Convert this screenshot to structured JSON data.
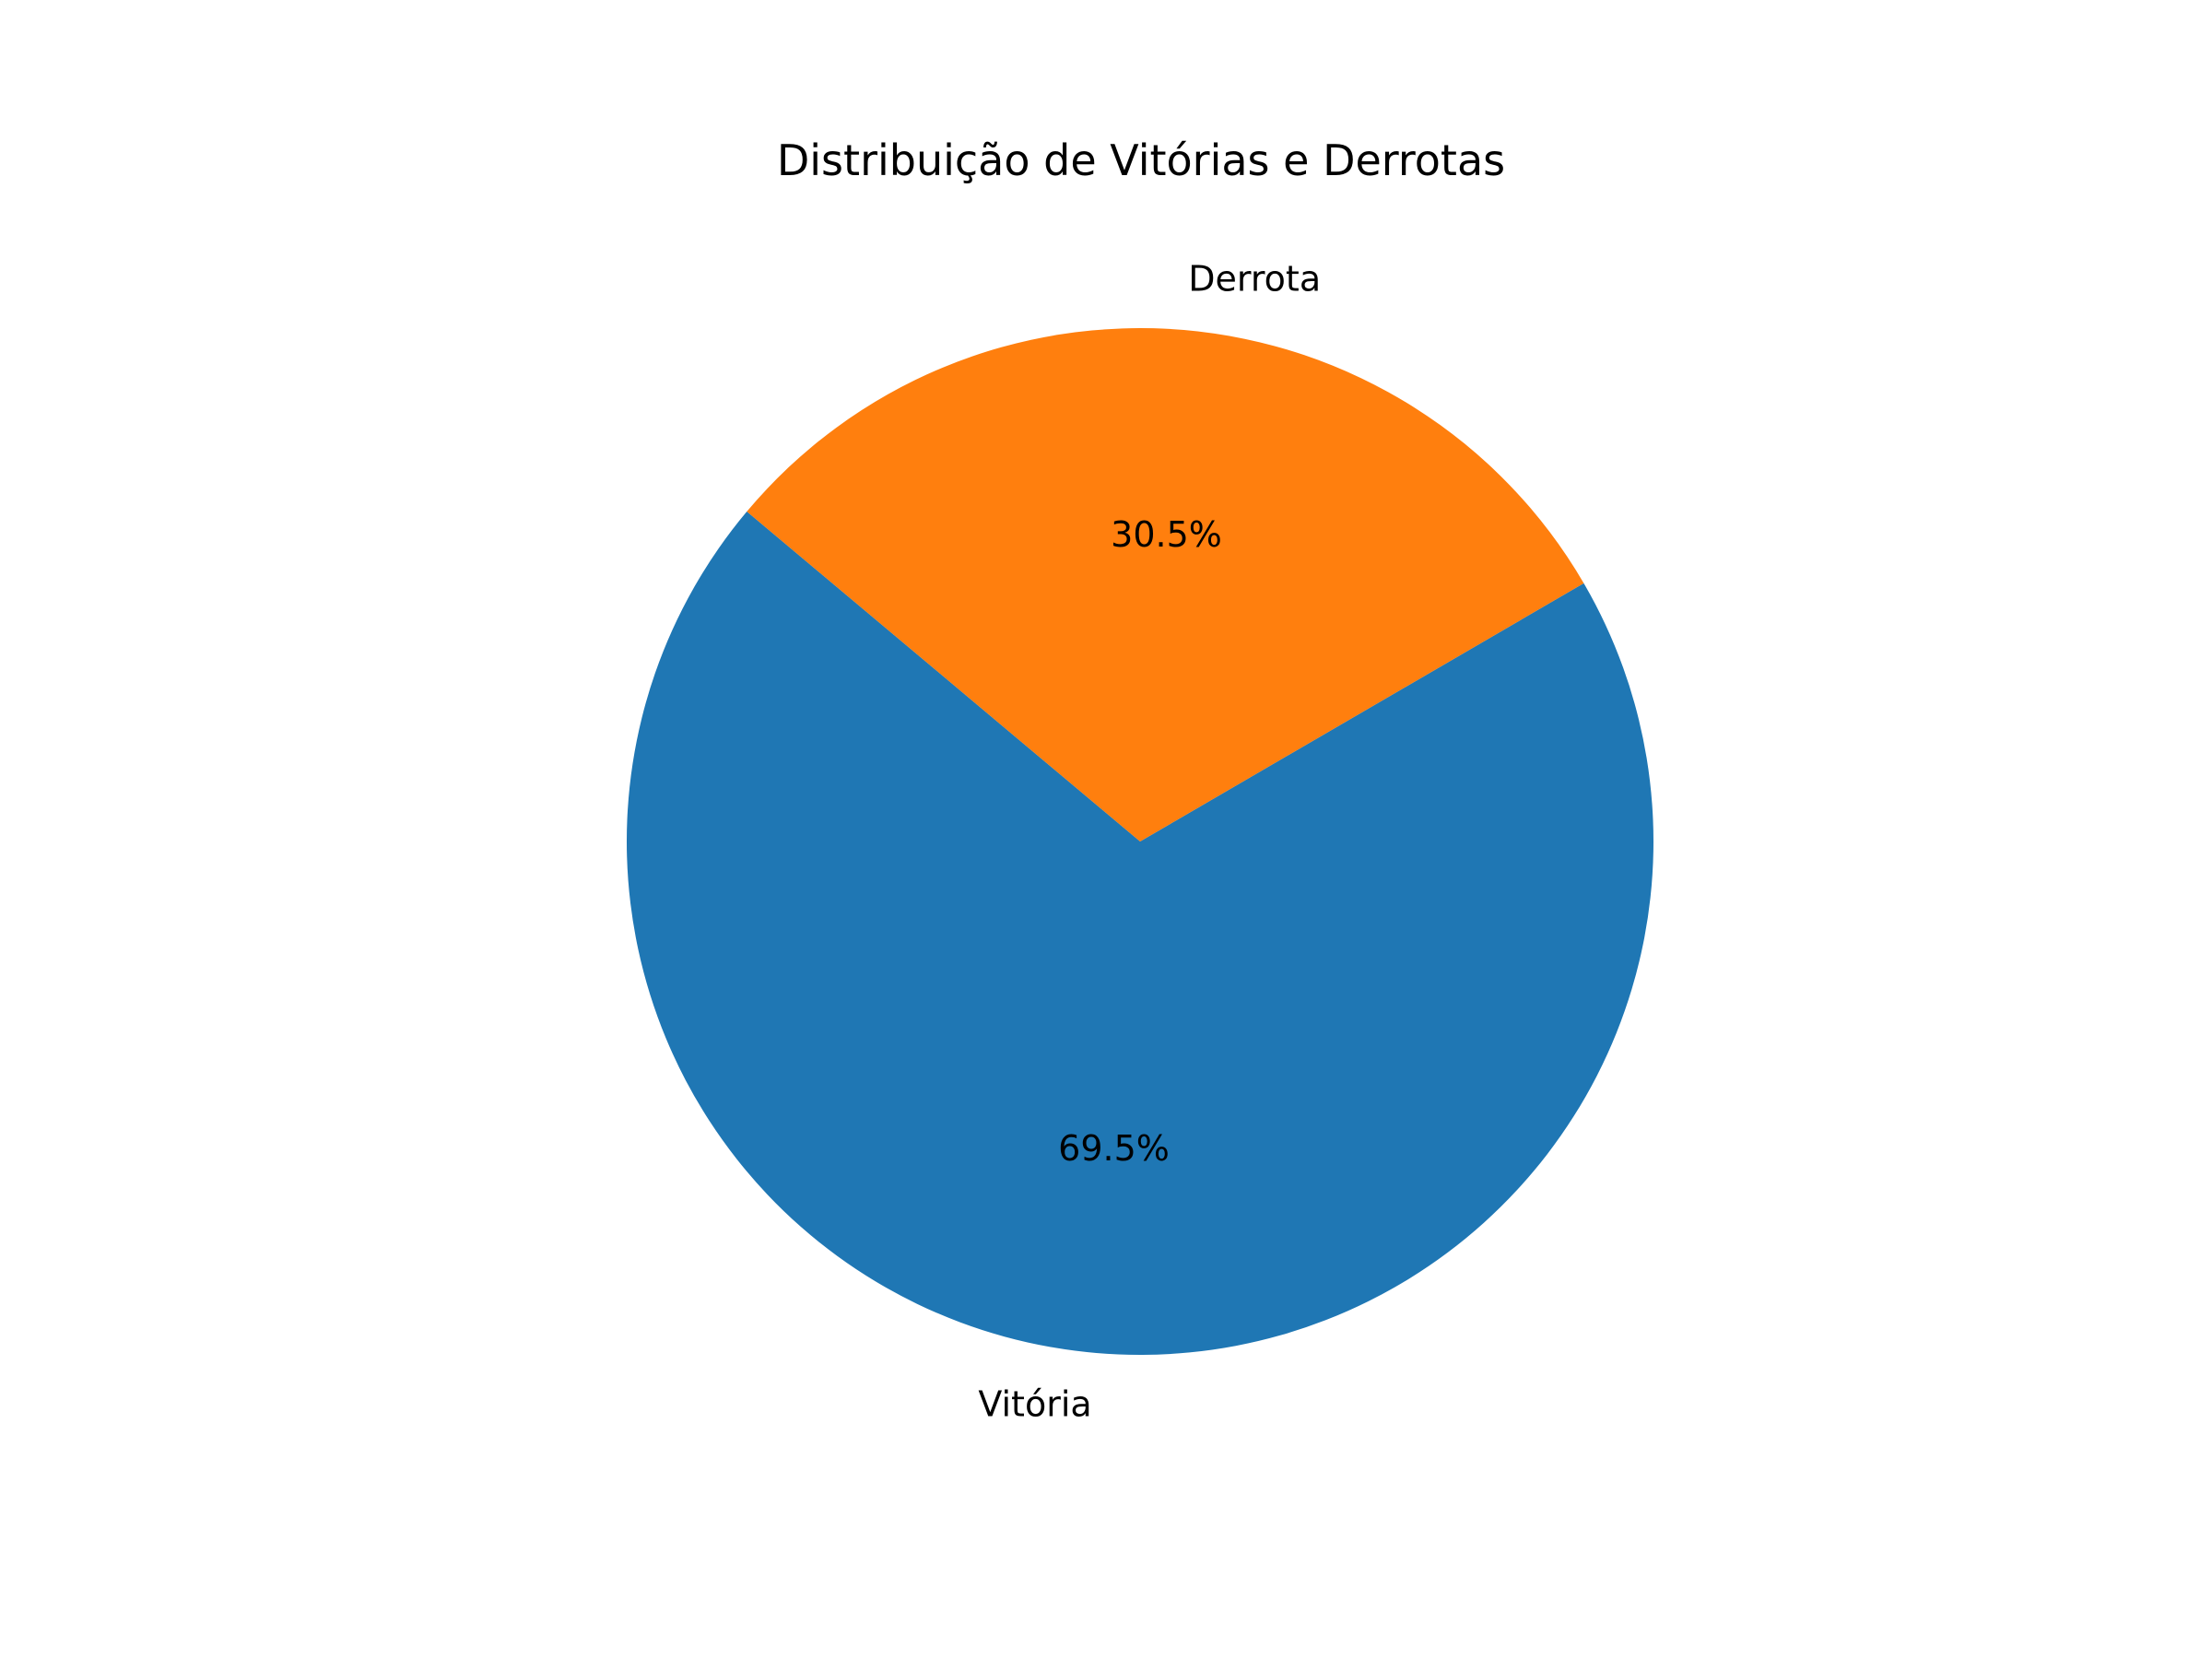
{
  "chart_data": {
    "type": "pie",
    "title": "Distribuição de Vitórias e Derrotas",
    "slices": [
      {
        "label": "Vitória",
        "value": 69.5,
        "pct_label": "69.5%",
        "color": "#1f77b4"
      },
      {
        "label": "Derrota",
        "value": 30.5,
        "pct_label": "30.5%",
        "color": "#ff7f0e"
      }
    ],
    "start_angle_deg": 140,
    "direction": "counterclockwise",
    "legend": "none"
  }
}
